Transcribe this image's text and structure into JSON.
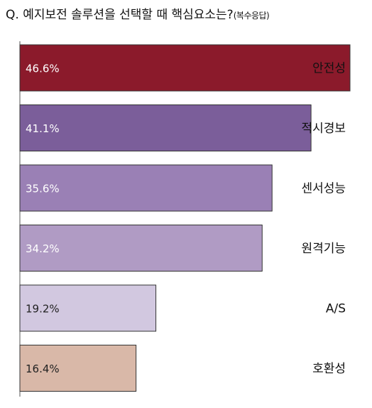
{
  "title": "Q. 예지보전 솔루션을 선택할 때 핵심요소는?",
  "subtitle": "(복수응답)",
  "chart_data": {
    "type": "bar",
    "orientation": "horizontal",
    "categories": [
      "안전성",
      "적시경보",
      "센서성능",
      "원격기능",
      "A/S",
      "호환성"
    ],
    "values": [
      46.6,
      41.1,
      35.6,
      34.2,
      19.2,
      16.4
    ],
    "value_labels": [
      "46.6%",
      "41.1%",
      "35.6%",
      "34.2%",
      "19.2%",
      "16.4%"
    ],
    "colors": [
      "#8b1a2b",
      "#7b5e9a",
      "#9a80b5",
      "#b09bc4",
      "#d2c8e0",
      "#d9b8a8"
    ],
    "label_colors": [
      "#ffffff",
      "#ffffff",
      "#ffffff",
      "#ffffff",
      "#222222",
      "#222222"
    ],
    "category_label_colors": [
      "#ffffff",
      "#111111",
      "#111111",
      "#111111",
      "#111111",
      "#111111"
    ],
    "xlim": [
      0,
      46.6
    ],
    "grid": false
  }
}
